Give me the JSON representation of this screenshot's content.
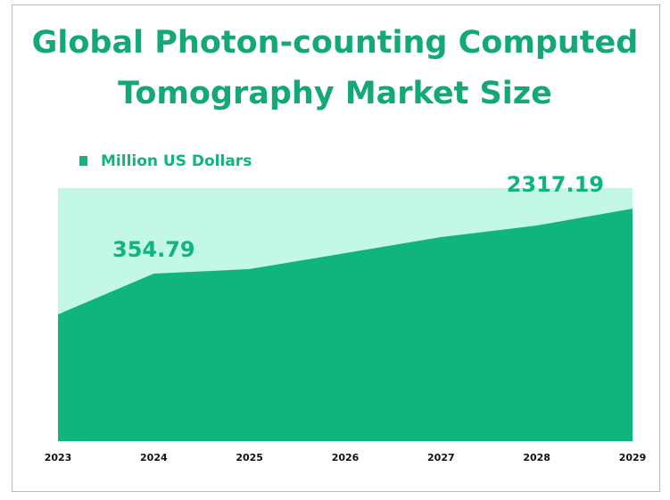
{
  "chart_data": {
    "type": "area",
    "title": "Global Photon-counting Computed Tomography Market Size",
    "categories": [
      "2023",
      "2024",
      "2025",
      "2026",
      "2027",
      "2028",
      "2029"
    ],
    "series": [
      {
        "name": "Million US Dollars",
        "color": "#10b47d",
        "values": [
          109,
          354.79,
          404,
          641,
          1018,
          1422,
          2317.19
        ],
        "value_labels": [
          null,
          "354.79",
          null,
          null,
          null,
          null,
          "2317.19"
        ]
      }
    ],
    "log_scale": true,
    "ylim": [
      2.8,
      4200
    ]
  }
}
